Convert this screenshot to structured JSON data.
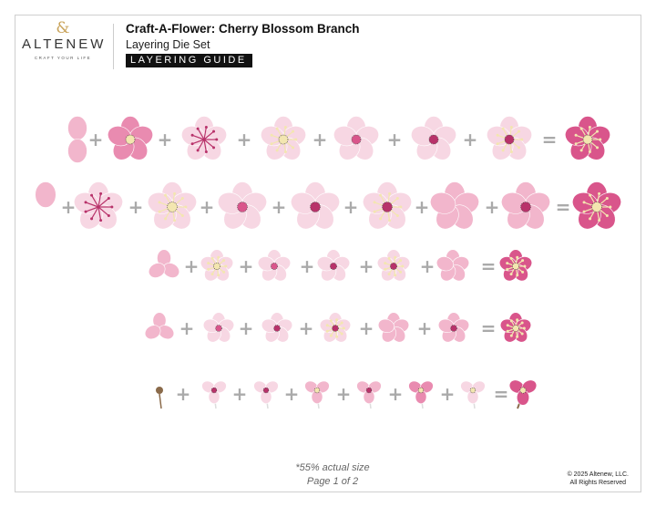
{
  "brand": {
    "name": "ALTENEW",
    "tagline": "CRAFT YOUR LIFE",
    "logo_icon": "ampersand-logo-icon",
    "accent": "#c9a35a"
  },
  "header": {
    "title": "Craft-A-Flower: Cherry Blossom Branch",
    "subtitle": "Layering Die Set",
    "badge": "LAYERING GUIDE"
  },
  "footer": {
    "scale_note": "*55% actual size",
    "page": "Page 1 of 2",
    "copyright_line1": "© 2025 Altenew, LLC.",
    "copyright_line2": "All Rights Reserved"
  },
  "colors": {
    "pale_pink": "#f7d7e3",
    "light_pink": "#f2b6cc",
    "mid_pink": "#e98bb0",
    "deep_pink": "#d9558b",
    "magenta": "#b8326a",
    "cream": "#f3e6b0",
    "stem": "#8a6a4a",
    "operator": "#aaaaaa"
  },
  "operators": {
    "plus": "+",
    "equals": "="
  },
  "rows": [
    {
      "name": "large-blossom-a",
      "steps": [
        "petal-pair",
        "petal-pair-with-center",
        "layered-petals",
        "stamen-layer",
        "cream-stamen-layer",
        "pale-flower-layer",
        "pale-flower-layer-2"
      ],
      "result": "finished-large-blossom-a"
    },
    {
      "name": "large-blossom-b",
      "steps": [
        "single-petal",
        "petal-cluster",
        "large-pale-petals",
        "layered-petals-center",
        "stamen-layer",
        "cream-stamen-layer",
        "pale-flower-layer",
        "pale-flower-layer-2"
      ],
      "result": "finished-large-blossom-b"
    },
    {
      "name": "medium-blossom",
      "steps": [
        "three-petals",
        "five-petal-outline",
        "stamen-star",
        "cream-center-flower",
        "pink-center-flower",
        "magenta-center-flower"
      ],
      "result": "finished-medium-blossom"
    },
    {
      "name": "small-blossom",
      "steps": [
        "three-petals",
        "five-petal-outline",
        "stamen-star",
        "cream-center-flower",
        "pink-center-flower",
        "magenta-center-flower"
      ],
      "result": "finished-small-blossom"
    },
    {
      "name": "bud",
      "steps": [
        "stem-sepal",
        "bud-petals",
        "bud-side",
        "bud-stamen",
        "bud-cream",
        "bud-magenta",
        "bud-pale"
      ],
      "result": "finished-bud"
    }
  ]
}
